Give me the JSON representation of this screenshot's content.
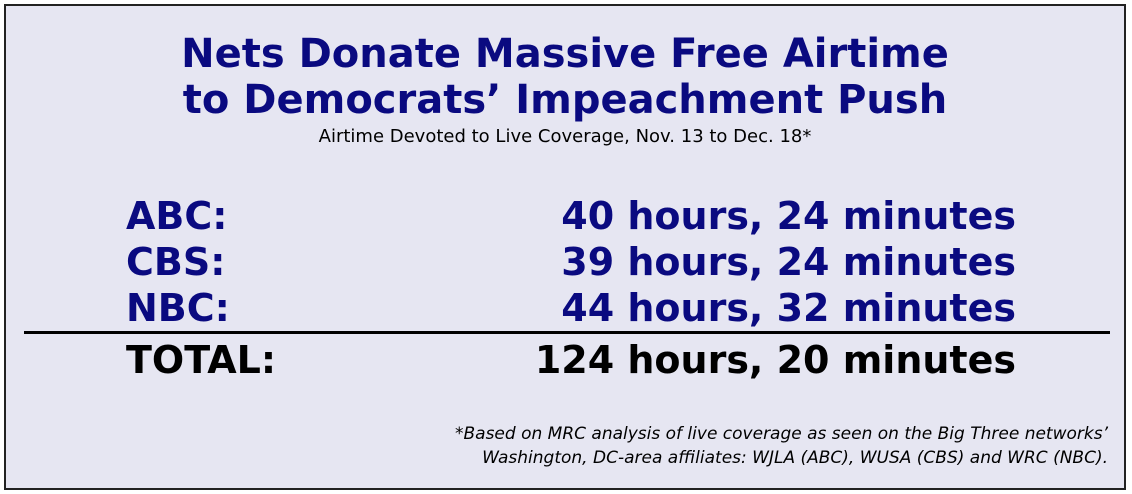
{
  "title_lines": [
    "Nets Donate Massive Free Airtime",
    "to Democrats’ Impeachment Push"
  ],
  "subtitle": "Airtime Devoted to Live Coverage, Nov. 13 to Dec. 18*",
  "table": {
    "rows": [
      [
        "ABC:",
        "40 hours, 24 minutes"
      ],
      [
        "CBS:",
        "39 hours, 24 minutes"
      ],
      [
        "NBC:",
        "44 hours, 32 minutes"
      ]
    ],
    "total": [
      "TOTAL:",
      "124 hours, 20 minutes"
    ]
  },
  "footnote_lines": [
    "*Based on MRC analysis of live coverage as seen on the Big Three networks’",
    "Washington, DC-area affiliates: WJLA (ABC), WUSA (CBS) and WRC (NBC)."
  ]
}
